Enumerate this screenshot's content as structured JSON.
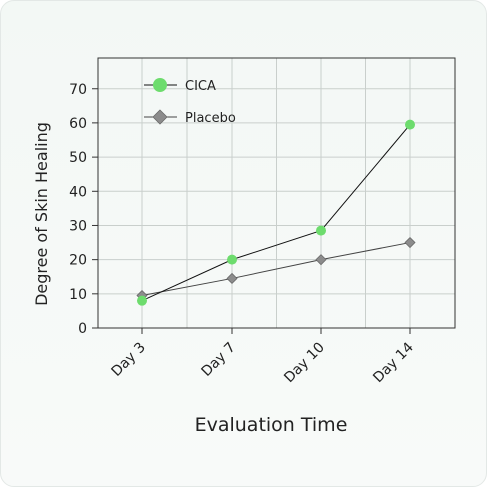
{
  "chart_data": {
    "type": "line",
    "title": "",
    "xlabel": "Evaluation Time",
    "ylabel": "Degree of Skin Healing",
    "categories": [
      "Day 3",
      "Day 7",
      "Day 10",
      "Day 14"
    ],
    "ylim": [
      0,
      79
    ],
    "yticks": [
      0,
      10,
      20,
      30,
      40,
      50,
      60,
      70
    ],
    "grid": true,
    "legend_position": "top-left",
    "series": [
      {
        "name": "CICA",
        "values": [
          8,
          20,
          28.5,
          59.5
        ],
        "color": "#6ddc6d",
        "marker": "circle",
        "line_color": "#111111"
      },
      {
        "name": "Placebo",
        "values": [
          9.5,
          14.5,
          20,
          25
        ],
        "color": "#8c8c8c",
        "marker": "diamond",
        "line_color": "#444444"
      }
    ]
  }
}
